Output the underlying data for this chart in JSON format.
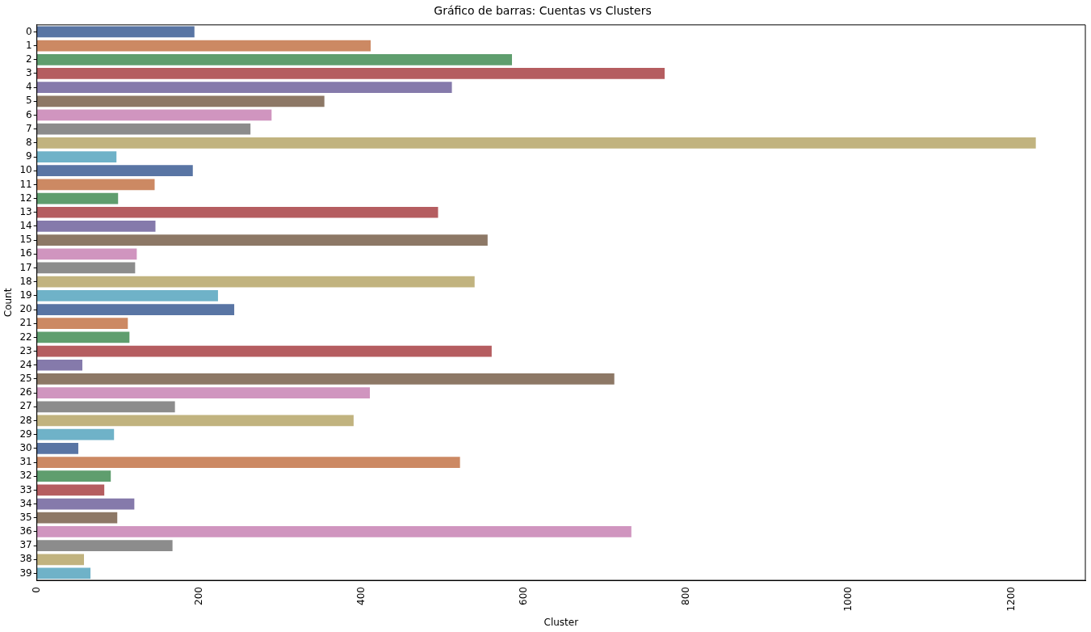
{
  "chart_data": {
    "type": "bar",
    "orientation": "horizontal",
    "title": "Gráfico de barras: Cuentas vs Clusters",
    "xlabel": "Cluster",
    "ylabel": "Count",
    "categories": [
      "0",
      "1",
      "2",
      "3",
      "4",
      "5",
      "6",
      "7",
      "8",
      "9",
      "10",
      "11",
      "12",
      "13",
      "14",
      "15",
      "16",
      "17",
      "18",
      "19",
      "20",
      "21",
      "22",
      "23",
      "24",
      "25",
      "26",
      "27",
      "28",
      "29",
      "30",
      "31",
      "32",
      "33",
      "34",
      "35",
      "36",
      "37",
      "38",
      "39"
    ],
    "values": [
      194,
      411,
      585,
      773,
      511,
      354,
      289,
      263,
      1230,
      98,
      192,
      145,
      100,
      494,
      146,
      555,
      123,
      121,
      539,
      223,
      243,
      112,
      114,
      560,
      56,
      711,
      410,
      170,
      390,
      95,
      51,
      521,
      91,
      83,
      120,
      99,
      732,
      167,
      58,
      66
    ],
    "colors": [
      "#5975a4",
      "#cc8963",
      "#5f9e6e",
      "#b55d60",
      "#857aab",
      "#8d7866",
      "#d095bf",
      "#8c8c8c",
      "#c1b37f",
      "#6fb2c8",
      "#5975a4",
      "#cc8963",
      "#5f9e6e",
      "#b55d60",
      "#857aab",
      "#8d7866",
      "#d095bf",
      "#8c8c8c",
      "#c1b37f",
      "#6fb2c8",
      "#5975a4",
      "#cc8963",
      "#5f9e6e",
      "#b55d60",
      "#857aab",
      "#8d7866",
      "#d095bf",
      "#8c8c8c",
      "#c1b37f",
      "#6fb2c8",
      "#5975a4",
      "#cc8963",
      "#5f9e6e",
      "#b55d60",
      "#857aab",
      "#8d7866",
      "#d095bf",
      "#8c8c8c",
      "#c1b37f",
      "#6fb2c8"
    ],
    "xlim": [
      0,
      1291
    ],
    "xticks": [
      0,
      200,
      400,
      600,
      800,
      1000,
      1200
    ],
    "grid": false,
    "legend": false
  }
}
